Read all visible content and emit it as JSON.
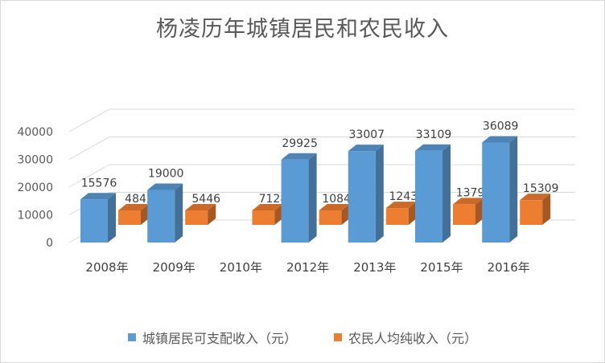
{
  "chart_data": {
    "type": "bar",
    "title": "杨凌历年城镇居民和农民收入",
    "categories": [
      "2008年",
      "2009年",
      "2010年",
      "2012年",
      "2013年",
      "2015年",
      "2016年"
    ],
    "series": [
      {
        "name": "城镇居民可支配收入（元）",
        "color": "#5b9bd5",
        "values": [
          15576,
          19000,
          null,
          29925,
          33007,
          33109,
          36089
        ],
        "labels": [
          "15576",
          "19000",
          "",
          "29925",
          "33007",
          "33109",
          "36089"
        ]
      },
      {
        "name": "农民人均纯收入（元）",
        "color": "#ed7d31",
        "values": [
          4842,
          5446,
          7128,
          10841,
          12435,
          13792,
          15309
        ],
        "labels": [
          "4842",
          "5446",
          "7128",
          "10841",
          "12435",
          "13792",
          "15309"
        ]
      }
    ],
    "yticks": [
      "0",
      "10000",
      "20000",
      "30000",
      "40000"
    ],
    "ylim": [
      0,
      40000
    ],
    "grid": true,
    "legend_position": "bottom",
    "three_d": true
  }
}
